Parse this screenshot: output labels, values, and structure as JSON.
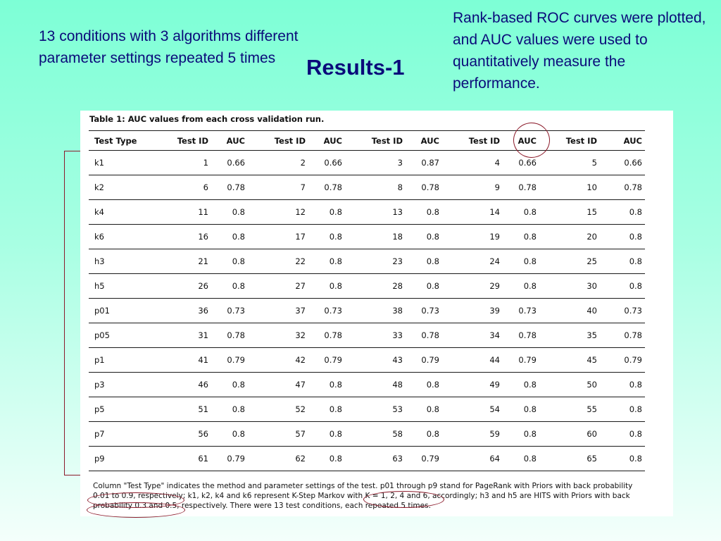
{
  "slide": {
    "title": "Results-1",
    "note_left": "13 conditions with 3 algorithms different parameter settings repeated 5 times",
    "note_right": "Rank-based ROC curves were plotted, and AUC values were used to quantitatively measure the performance."
  },
  "table": {
    "caption": "Table 1: AUC values from each cross validation run.",
    "headers": [
      "Test Type",
      "Test ID",
      "AUC",
      "Test ID",
      "AUC",
      "Test ID",
      "AUC",
      "Test ID",
      "AUC",
      "Test ID",
      "AUC"
    ],
    "rows": [
      [
        "k1",
        "1",
        "0.66",
        "2",
        "0.66",
        "3",
        "0.87",
        "4",
        "0.66",
        "5",
        "0.66"
      ],
      [
        "k2",
        "6",
        "0.78",
        "7",
        "0.78",
        "8",
        "0.78",
        "9",
        "0.78",
        "10",
        "0.78"
      ],
      [
        "k4",
        "11",
        "0.8",
        "12",
        "0.8",
        "13",
        "0.8",
        "14",
        "0.8",
        "15",
        "0.8"
      ],
      [
        "k6",
        "16",
        "0.8",
        "17",
        "0.8",
        "18",
        "0.8",
        "19",
        "0.8",
        "20",
        "0.8"
      ],
      [
        "h3",
        "21",
        "0.8",
        "22",
        "0.8",
        "23",
        "0.8",
        "24",
        "0.8",
        "25",
        "0.8"
      ],
      [
        "h5",
        "26",
        "0.8",
        "27",
        "0.8",
        "28",
        "0.8",
        "29",
        "0.8",
        "30",
        "0.8"
      ],
      [
        "p01",
        "36",
        "0.73",
        "37",
        "0.73",
        "38",
        "0.73",
        "39",
        "0.73",
        "40",
        "0.73"
      ],
      [
        "p05",
        "31",
        "0.78",
        "32",
        "0.78",
        "33",
        "0.78",
        "34",
        "0.78",
        "35",
        "0.78"
      ],
      [
        "p1",
        "41",
        "0.79",
        "42",
        "0.79",
        "43",
        "0.79",
        "44",
        "0.79",
        "45",
        "0.79"
      ],
      [
        "p3",
        "46",
        "0.8",
        "47",
        "0.8",
        "48",
        "0.8",
        "49",
        "0.8",
        "50",
        "0.8"
      ],
      [
        "p5",
        "51",
        "0.8",
        "52",
        "0.8",
        "53",
        "0.8",
        "54",
        "0.8",
        "55",
        "0.8"
      ],
      [
        "p7",
        "56",
        "0.8",
        "57",
        "0.8",
        "58",
        "0.8",
        "59",
        "0.8",
        "60",
        "0.8"
      ],
      [
        "p9",
        "61",
        "0.79",
        "62",
        "0.8",
        "63",
        "0.79",
        "64",
        "0.8",
        "65",
        "0.8"
      ]
    ],
    "footnote": "Column \"Test Type\" indicates the method and parameter settings of the test. p01 through p9 stand for PageRank with Priors with back probability 0.01 to 0.9, respectively; k1, k2, k4 and k6 represent K-Step Markov with K = 1, 2, 4 and 6, accordingly; h3 and h5 are HITS with Priors with back probability 0.3 and 0.5, respectively. There were 13 test conditions, each repeated 5 times."
  },
  "colors": {
    "text_blue": "#0a0a7a",
    "annotation_red": "#8b1a2a",
    "background_top": "#7dffd6"
  }
}
